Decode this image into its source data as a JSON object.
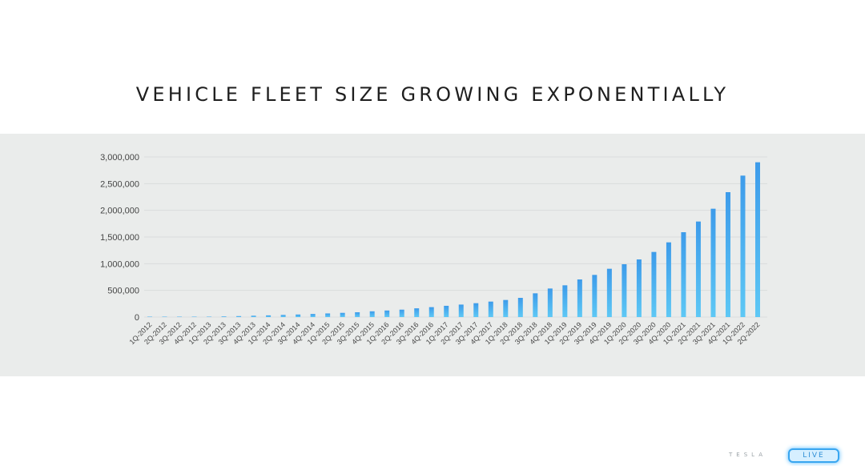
{
  "slide": {
    "title": "VEHICLE FLEET SIZE GROWING EXPONENTIALLY",
    "footer_logo_text": "TESLA",
    "live_badge_text": "LIVE"
  },
  "colors": {
    "band": "#eaeceb",
    "bar_top": "#3d9bea",
    "bar_bottom": "#5ec8f5",
    "grid": "#d9dcdc",
    "axis_text": "#444444"
  },
  "chart_data": {
    "type": "bar",
    "title": "VEHICLE FLEET SIZE GROWING EXPONENTIALLY",
    "xlabel": "",
    "ylabel": "",
    "ylim": [
      0,
      3000000
    ],
    "yticks": [
      0,
      500000,
      1000000,
      1500000,
      2000000,
      2500000,
      3000000
    ],
    "ytick_labels": [
      "0",
      "500,000",
      "1,000,000",
      "1,500,000",
      "2,000,000",
      "2,500,000",
      "3,000,000"
    ],
    "grid": true,
    "categories": [
      "1Q-2012",
      "2Q-2012",
      "3Q-2012",
      "4Q-2012",
      "1Q-2013",
      "2Q-2013",
      "3Q-2013",
      "4Q-2013",
      "1Q-2014",
      "2Q-2014",
      "3Q-2014",
      "4Q-2014",
      "1Q-2015",
      "2Q-2015",
      "3Q-2015",
      "4Q-2015",
      "1Q-2016",
      "2Q-2016",
      "3Q-2016",
      "4Q-2016",
      "1Q-2017",
      "2Q-2017",
      "3Q-2017",
      "4Q-2017",
      "1Q-2018",
      "2Q-2018",
      "3Q-2018",
      "4Q-2018",
      "1Q-2019",
      "2Q-2019",
      "3Q-2019",
      "4Q-2019",
      "1Q-2020",
      "2Q-2020",
      "3Q-2020",
      "4Q-2020",
      "1Q-2021",
      "2Q-2021",
      "3Q-2021",
      "4Q-2021",
      "1Q-2022",
      "2Q-2022"
    ],
    "values": [
      2500,
      2600,
      2700,
      3000,
      7500,
      12000,
      18000,
      25000,
      32000,
      40000,
      48000,
      58000,
      68000,
      79000,
      90000,
      108000,
      123000,
      139000,
      164000,
      186000,
      211000,
      234000,
      260000,
      290000,
      320000,
      360000,
      445000,
      535000,
      595000,
      705000,
      790000,
      905000,
      990000,
      1080000,
      1220000,
      1400000,
      1590000,
      1790000,
      2030000,
      2340000,
      2650000,
      2900000
    ]
  }
}
